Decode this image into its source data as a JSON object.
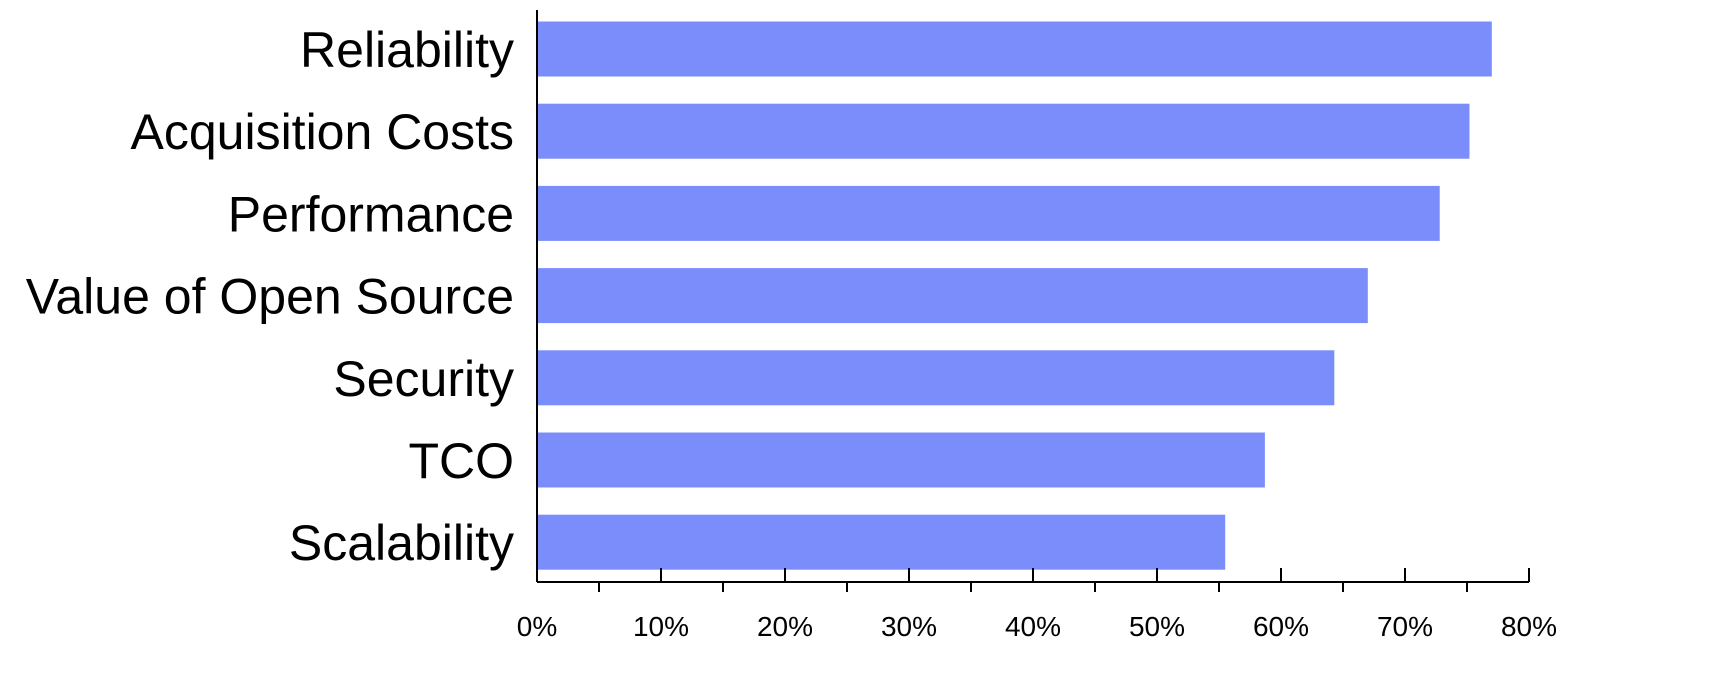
{
  "chart_data": {
    "type": "bar",
    "orientation": "horizontal",
    "title": "",
    "xlabel": "",
    "ylabel": "",
    "categories": [
      "Reliability",
      "Acquisition Costs",
      "Performance",
      "Value of Open Source",
      "Security",
      "TCO",
      "Scalability"
    ],
    "values": [
      77,
      75.2,
      72.8,
      67,
      64.3,
      58.7,
      55.5
    ],
    "xlim": [
      0,
      80
    ],
    "x_ticks": [
      0,
      10,
      20,
      30,
      40,
      50,
      60,
      70,
      80
    ],
    "x_tick_labels": [
      "0%",
      "10%",
      "20%",
      "30%",
      "40%",
      "50%",
      "60%",
      "70%",
      "80%"
    ],
    "grid": false,
    "legend": "none",
    "bar_color": "#7b8cfb",
    "axis_color": "#000000"
  }
}
